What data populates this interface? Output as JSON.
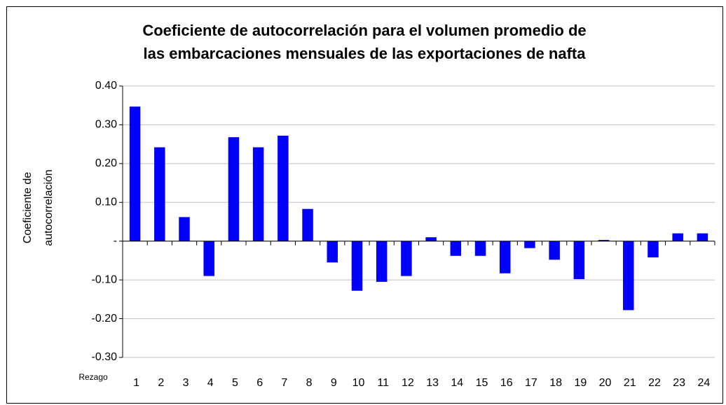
{
  "chart_data": {
    "type": "bar",
    "title": [
      "Coeficiente de autocorrelación para el volumen promedio de",
      "las embarcaciones mensuales de las exportaciones de nafta"
    ],
    "y_label": [
      "Coeficiente de",
      "autocorrelación"
    ],
    "x_label": "Rezago",
    "categories": [
      "1",
      "2",
      "3",
      "4",
      "5",
      "6",
      "7",
      "8",
      "9",
      "10",
      "11",
      "12",
      "13",
      "14",
      "15",
      "16",
      "17",
      "18",
      "19",
      "20",
      "21",
      "22",
      "23",
      "24"
    ],
    "values": [
      0.347,
      0.242,
      0.062,
      -0.09,
      0.268,
      0.242,
      0.272,
      0.083,
      -0.055,
      -0.128,
      -0.105,
      -0.09,
      0.01,
      -0.038,
      -0.038,
      -0.083,
      -0.018,
      -0.048,
      -0.098,
      0.003,
      -0.178,
      -0.042,
      0.02,
      0.02
    ],
    "color": "#0000ff",
    "ylim": [
      -0.3,
      0.4
    ],
    "yticks": [
      {
        "value": 0.4,
        "label": "0.40"
      },
      {
        "value": 0.3,
        "label": "0.30"
      },
      {
        "value": 0.2,
        "label": "0.20"
      },
      {
        "value": 0.1,
        "label": "0.10"
      },
      {
        "value": 0,
        "label": "-"
      },
      {
        "value": -0.1,
        "label": "-0.10"
      },
      {
        "value": -0.2,
        "label": "-0.20"
      },
      {
        "value": -0.3,
        "label": "-0.30"
      }
    ],
    "grid": true
  }
}
